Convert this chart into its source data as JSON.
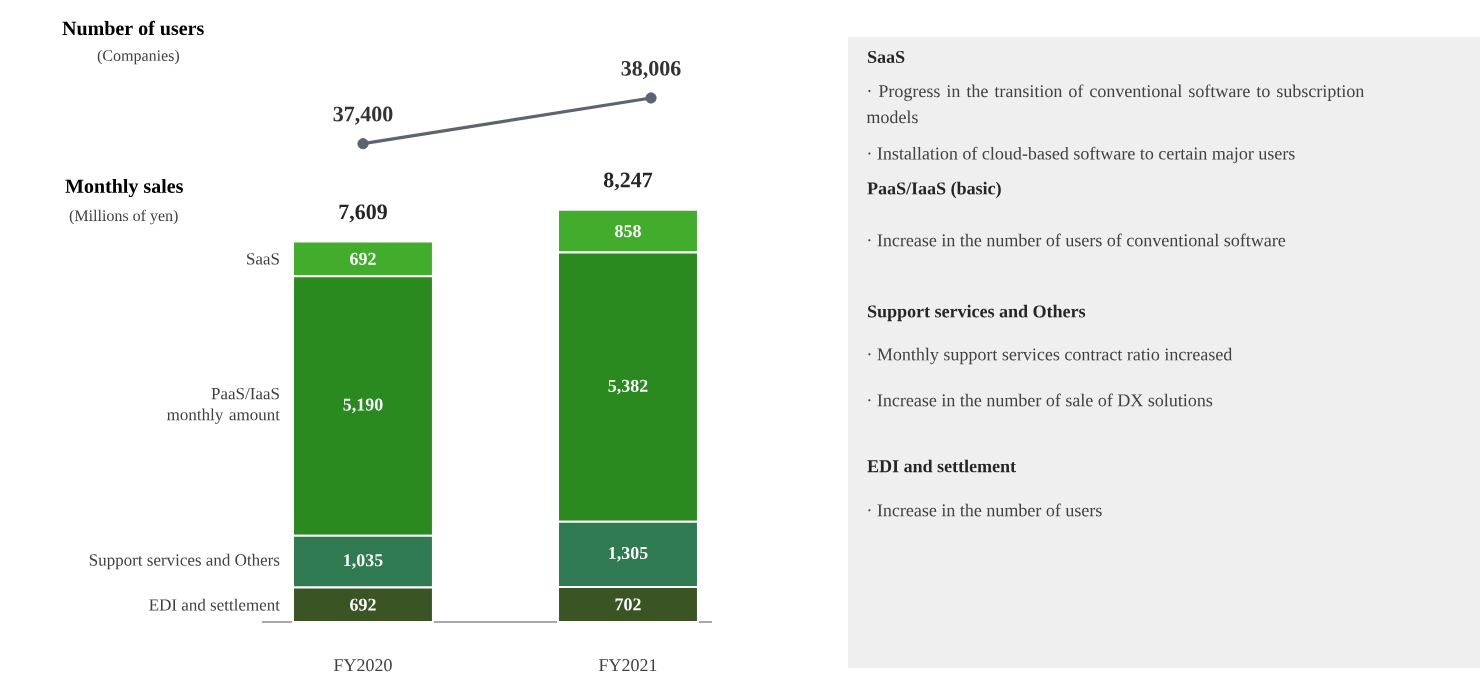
{
  "chart_data": [
    {
      "type": "line",
      "title": "Number of users",
      "subtitle": "(Companies)",
      "categories": [
        null,
        null
      ],
      "values": [
        37400,
        38006
      ],
      "value_labels": [
        "37,400",
        "38,006"
      ],
      "color": "#5b6570",
      "marker": "circle"
    },
    {
      "type": "bar",
      "title": "Monthly sales",
      "subtitle": "(Millions of yen)",
      "categories": [
        "FY2020",
        "FY2021"
      ],
      "stacked": true,
      "totals": [
        "7,609",
        "8,247"
      ],
      "series": [
        {
          "name": "EDI and settlement",
          "color": "#3b5424",
          "values": [
            692,
            702
          ],
          "value_labels": [
            "692",
            "702"
          ]
        },
        {
          "name": "Support services and Others",
          "color": "#2f7a50",
          "values": [
            1035,
            1305
          ],
          "value_labels": [
            "1,035",
            "1,305"
          ]
        },
        {
          "name": "PaaS/IaaS monthly amount",
          "color": "#2a8a20",
          "values": [
            5190,
            5382
          ],
          "value_labels": [
            "5,190",
            "5,382"
          ]
        },
        {
          "name": "SaaS",
          "color": "#42ad2c",
          "values": [
            692,
            858
          ],
          "value_labels": [
            "692",
            "858"
          ]
        }
      ]
    },
    {
      "type": "other",
      "annotations": [
        "SaaS",
        "· Progress in the transition of conventional software to subscription models",
        "· Installation of cloud-based software to certain major users",
        "PaaS/IaaS (basic)",
        "· Increase in the number of users of conventional software",
        "Support services and Others",
        "· Monthly support services contract ratio increased",
        "· Increase in the number of sale of DX solutions",
        "EDI and settlement",
        "· Increase in the number of users"
      ]
    }
  ]
}
